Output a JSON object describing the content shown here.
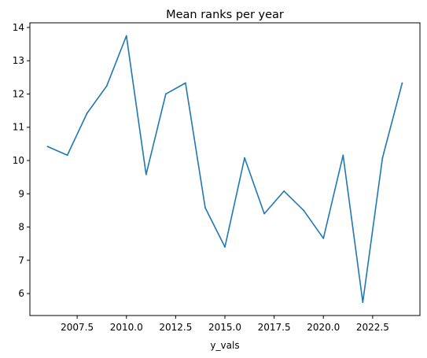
{
  "chart_data": {
    "type": "line",
    "title": "Mean ranks per year",
    "xlabel": "y_vals",
    "ylabel": "",
    "grid": false,
    "legend": "none",
    "xlim": [
      2005.1,
      2024.9
    ],
    "ylim": [
      5.34,
      14.14
    ],
    "xticks": [
      2007.5,
      2010.0,
      2012.5,
      2015.0,
      2017.5,
      2020.0,
      2022.5
    ],
    "xtick_labels": [
      "2007.5",
      "2010.0",
      "2012.5",
      "2015.0",
      "2017.5",
      "2020.0",
      "2022.5"
    ],
    "yticks": [
      6,
      7,
      8,
      9,
      10,
      11,
      12,
      13,
      14
    ],
    "ytick_labels": [
      "6",
      "7",
      "8",
      "9",
      "10",
      "11",
      "12",
      "13",
      "14"
    ],
    "series": [
      {
        "color": "#1f77b4",
        "x": [
          2006,
          2007,
          2008,
          2009,
          2010,
          2011,
          2012,
          2013,
          2014,
          2015,
          2016,
          2017,
          2018,
          2019,
          2020,
          2021,
          2022,
          2023,
          2024
        ],
        "y": [
          10.42,
          10.16,
          11.42,
          12.24,
          13.75,
          9.58,
          12.0,
          12.33,
          8.58,
          7.4,
          10.08,
          8.4,
          9.08,
          8.5,
          7.66,
          10.16,
          5.74,
          10.08,
          12.33
        ]
      }
    ]
  }
}
